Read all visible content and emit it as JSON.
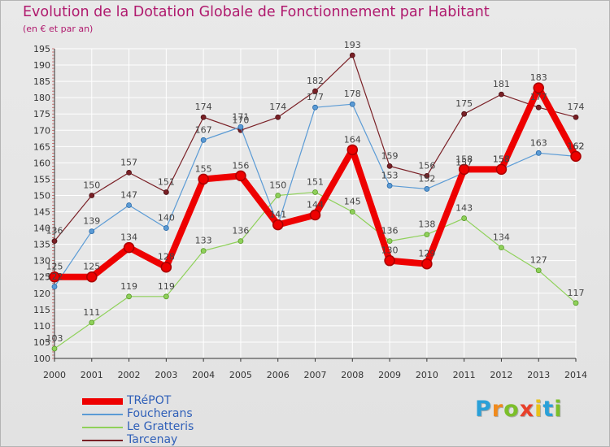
{
  "title": "Evolution de la Dotation Globale de Fonctionnement par Habitant",
  "subtitle": "(en € et par an)",
  "logo": {
    "letters": [
      "P",
      "r",
      "o",
      "x",
      "i",
      "t",
      "i"
    ],
    "colors": [
      "#2aa0d8",
      "#f08a1c",
      "#7cbf2a",
      "#e8402a",
      "#e8c21a",
      "#2aa0d8",
      "#7cbf2a"
    ]
  },
  "chart_data": {
    "type": "line",
    "x": [
      "2000",
      "2001",
      "2002",
      "2003",
      "2004",
      "2005",
      "2006",
      "2007",
      "2008",
      "2009",
      "2010",
      "2011",
      "2012",
      "2013",
      "2014"
    ],
    "ylim": [
      100,
      195
    ],
    "yticks": [
      "100",
      "105",
      "110",
      "115",
      "120",
      "125",
      "130",
      "135",
      "140",
      "145",
      "150",
      "155",
      "160",
      "165",
      "170",
      "175",
      "180",
      "185",
      "190",
      "195"
    ],
    "grid": true,
    "legend_position": "bottom-left",
    "series": [
      {
        "name": "TRéPOT",
        "color": "#ee0000",
        "values": [
          125,
          125,
          134,
          128,
          155,
          156,
          141,
          144,
          164,
          130,
          129,
          158,
          158,
          183,
          162
        ],
        "labels": [
          "125",
          "125",
          "134",
          "128",
          "155",
          "156",
          "141",
          "144",
          "164",
          "130",
          "129",
          "158",
          "158",
          "183",
          "162"
        ]
      },
      {
        "name": "Foucherans",
        "color": "#5b9bd5",
        "values": [
          122,
          139,
          147,
          140,
          167,
          171,
          141,
          177,
          178,
          153,
          152,
          157,
          158,
          163,
          162
        ],
        "labels": [
          "122",
          "139",
          "147",
          "140",
          "167",
          "171",
          "141",
          "177",
          "178",
          "153",
          "152",
          "157",
          "158",
          "163",
          "162"
        ]
      },
      {
        "name": "Le Gratteris",
        "color": "#8fd15a",
        "values": [
          103,
          111,
          119,
          119,
          133,
          136,
          150,
          151,
          145,
          136,
          138,
          143,
          134,
          127,
          117
        ],
        "labels": [
          "103",
          "111",
          "119",
          "119",
          "133",
          "136",
          "150",
          "151",
          "145",
          "136",
          "138",
          "143",
          "134",
          "127",
          "117"
        ]
      },
      {
        "name": "Tarcenay",
        "color": "#7a2026",
        "values": [
          136,
          150,
          157,
          151,
          174,
          170,
          174,
          182,
          193,
          159,
          156,
          175,
          181,
          177,
          174
        ],
        "labels": [
          "136",
          "150",
          "157",
          "151",
          "174",
          "170",
          "174",
          "182",
          "193",
          "159",
          "156",
          "175",
          "181",
          "177",
          "174"
        ]
      }
    ]
  }
}
